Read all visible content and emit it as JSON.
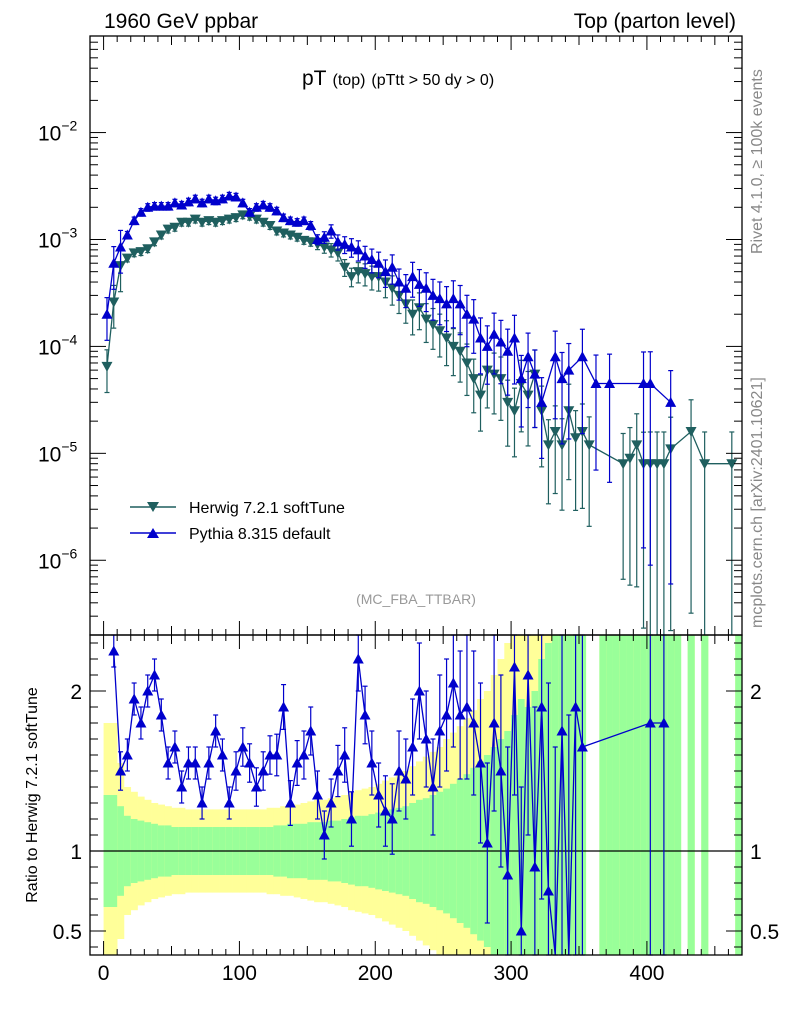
{
  "header": {
    "left": "1960 GeV ppbar",
    "right": "Top (parton level)"
  },
  "side_labels": {
    "rivet": "Rivet 4.1.0, ≥ 100k events",
    "mcplots": "mcplots.cern.ch [arXiv:2401.10621]"
  },
  "colors": {
    "herwig": "#1f5f5f",
    "pythia": "#0000cc",
    "band_inner": "#99ff99",
    "band_outer": "#ffff99"
  },
  "chart_data": [
    {
      "type": "line",
      "panel": "main",
      "title": "pT",
      "title_sub": "(top)",
      "title_cuts": "(pTtt > 50 dy > 0)",
      "analysis_label": "(MC_FBA_TTBAR)",
      "xlabel": "",
      "ylabel": "",
      "xlim": [
        -10,
        470
      ],
      "ylim": [
        2e-07,
        0.08
      ],
      "yscale": "log",
      "y_ticks": [
        {
          "base": "10",
          "exp": "−2",
          "value": 0.01
        },
        {
          "base": "10",
          "exp": "−3",
          "value": 0.001
        },
        {
          "base": "10",
          "exp": "−4",
          "value": 0.0001
        },
        {
          "base": "10",
          "exp": "−5",
          "value": 1e-05
        },
        {
          "base": "10",
          "exp": "−6",
          "value": 1e-06
        }
      ],
      "legend": [
        "Herwig 7.2.1 softTune",
        "Pythia 8.315 default"
      ],
      "legend_position": "lower-left",
      "x": [
        2.5,
        7.5,
        12.5,
        17.5,
        22.5,
        27.5,
        32.5,
        37.5,
        42.5,
        47.5,
        52.5,
        57.5,
        62.5,
        67.5,
        72.5,
        77.5,
        82.5,
        87.5,
        92.5,
        97.5,
        102.5,
        107.5,
        112.5,
        117.5,
        122.5,
        127.5,
        132.5,
        137.5,
        142.5,
        147.5,
        152.5,
        157.5,
        162.5,
        167.5,
        172.5,
        177.5,
        182.5,
        187.5,
        192.5,
        197.5,
        202.5,
        207.5,
        212.5,
        217.5,
        222.5,
        227.5,
        232.5,
        237.5,
        242.5,
        247.5,
        252.5,
        257.5,
        262.5,
        267.5,
        272.5,
        277.5,
        282.5,
        287.5,
        292.5,
        297.5,
        302.5,
        307.5,
        312.5,
        317.5,
        322.5,
        327.5,
        332.5,
        337.5,
        342.5,
        347.5,
        352.5,
        357.5,
        362.5,
        367.5,
        372.5,
        377.5,
        382.5,
        387.5,
        392.5,
        397.5,
        402.5,
        407.5,
        412.5,
        417.5,
        422.5,
        427.5,
        432.5,
        437.5,
        442.5,
        447.5,
        452.5,
        457.5,
        462.5
      ],
      "series": [
        {
          "name": "Herwig 7.2.1 softTune",
          "marker": "triangle-down",
          "values": [
            6.5e-05,
            0.00026,
            0.00057,
            0.00067,
            0.00075,
            0.00077,
            0.00082,
            0.00095,
            0.0011,
            0.00125,
            0.0013,
            0.00145,
            0.00145,
            0.00155,
            0.00145,
            0.0015,
            0.00145,
            0.0015,
            0.00155,
            0.0016,
            0.0017,
            0.00165,
            0.00155,
            0.00145,
            0.00135,
            0.0012,
            0.00115,
            0.0011,
            0.00105,
            0.00098,
            0.00095,
            0.0009,
            0.00085,
            0.0008,
            0.00075,
            0.00055,
            0.00045,
            0.0005,
            0.00048,
            0.00045,
            0.00045,
            0.0004,
            0.00035,
            0.0003,
            0.00025,
            0.0002,
            0.00023,
            0.00018,
            0.00016,
            0.00014,
            0.00012,
            0.0001,
            9e-05,
            7e-05,
            5e-05,
            3.5e-05,
            6e-05,
            5.5e-05,
            5e-05,
            3e-05,
            2.5e-05,
            4.5e-05,
            3.5e-05,
            5.5e-05,
            2.5e-05,
            1.2e-05,
            1.6e-05,
            1.2e-05,
            2.5e-05,
            1.4e-05,
            1.6e-05,
            1.2e-05,
            null,
            null,
            null,
            null,
            8e-06,
            9e-06,
            1.2e-05,
            8e-06,
            8e-06,
            8e-06,
            8e-06,
            1.1e-05,
            null,
            null,
            1.6e-05,
            null,
            8e-06,
            null,
            null,
            null,
            8e-06
          ]
        },
        {
          "name": "Pythia 8.315 default",
          "marker": "triangle-up",
          "values": [
            0.0002,
            0.0006,
            0.00085,
            0.0011,
            0.0015,
            0.0018,
            0.002,
            0.00205,
            0.00205,
            0.00205,
            0.0022,
            0.0021,
            0.00225,
            0.0024,
            0.0022,
            0.0024,
            0.0023,
            0.0024,
            0.00255,
            0.0025,
            0.0022,
            0.0018,
            0.002,
            0.0021,
            0.002,
            0.00185,
            0.0016,
            0.0015,
            0.00145,
            0.0015,
            0.00135,
            0.001,
            0.00105,
            0.0012,
            0.00095,
            0.0009,
            0.00085,
            0.0008,
            0.0007,
            0.00065,
            0.0006,
            0.0005,
            0.00055,
            0.0004,
            0.00035,
            0.00045,
            0.00038,
            0.00035,
            0.0003,
            0.00028,
            0.00025,
            0.00028,
            0.00025,
            0.0002,
            0.00018,
            0.00012,
            0.0001,
            0.00013,
            0.00011,
            9e-05,
            0.00012,
            5e-05,
            8e-05,
            5.5e-05,
            3e-05,
            null,
            8e-05,
            5e-05,
            6e-05,
            null,
            8e-05,
            null,
            4.5e-05,
            null,
            4.5e-05,
            null,
            null,
            null,
            null,
            4.5e-05,
            4.5e-05,
            null,
            null,
            3e-05,
            null,
            null,
            null,
            null,
            null,
            null,
            null,
            null,
            null
          ]
        }
      ]
    },
    {
      "type": "line",
      "panel": "ratio",
      "title": "",
      "xlabel": "",
      "ylabel": "Ratio to Herwig 7.2.1 softTune",
      "xlim": [
        -10,
        470
      ],
      "ylim": [
        0.35,
        2.35
      ],
      "yscale": "linear",
      "x_ticks": [
        0,
        100,
        200,
        300,
        400
      ],
      "y_ticks": [
        0.5,
        1,
        2
      ],
      "reference": 1.0,
      "band_edges": [
        0,
        10,
        15,
        20,
        25,
        30,
        35,
        40,
        45,
        50,
        55,
        60,
        65,
        70,
        75,
        80,
        85,
        90,
        95,
        100,
        105,
        110,
        115,
        120,
        125,
        130,
        135,
        140,
        145,
        150,
        155,
        160,
        165,
        170,
        175,
        180,
        185,
        190,
        195,
        200,
        205,
        210,
        215,
        220,
        225,
        230,
        235,
        240,
        245,
        250,
        255,
        260,
        265,
        270,
        275,
        280,
        285,
        290,
        295,
        300,
        305,
        310,
        315,
        320,
        325,
        330,
        335,
        340,
        345,
        350,
        355,
        360,
        365,
        370,
        375,
        380,
        385,
        390,
        395,
        400,
        405,
        410,
        415,
        420,
        425,
        430,
        435,
        440,
        445,
        450,
        455,
        460,
        465,
        470
      ],
      "band_inner_halfwidth": [
        0.35,
        0.28,
        0.22,
        0.2,
        0.19,
        0.18,
        0.17,
        0.16,
        0.16,
        0.15,
        0.15,
        0.15,
        0.15,
        0.15,
        0.15,
        0.15,
        0.15,
        0.15,
        0.15,
        0.15,
        0.15,
        0.15,
        0.15,
        0.15,
        0.16,
        0.16,
        0.17,
        0.17,
        0.17,
        0.18,
        0.18,
        0.18,
        0.19,
        0.19,
        0.2,
        0.21,
        0.22,
        0.22,
        0.23,
        0.24,
        0.25,
        0.26,
        0.27,
        0.28,
        0.3,
        0.32,
        0.33,
        0.35,
        0.37,
        0.39,
        0.42,
        0.45,
        0.48,
        0.52,
        0.56,
        0.6,
        0.65,
        0.7,
        0.75,
        0.85,
        0.95,
        0.9,
        1.0,
        1.2,
        1.3,
        1.4,
        1.5,
        1.5,
        1.6,
        1.6,
        1.7,
        1.0,
        1.6,
        1.6,
        1.6,
        1.6,
        1.6,
        1.6,
        1.6,
        1.6,
        1.6,
        1.6,
        1.6,
        1.6,
        1.6,
        1.6,
        1.6,
        1.6,
        1.6,
        1.6,
        1.6,
        1.6,
        1.6
      ],
      "band_outer_halfwidth": [
        0.8,
        0.55,
        0.4,
        0.37,
        0.34,
        0.32,
        0.3,
        0.29,
        0.28,
        0.27,
        0.27,
        0.26,
        0.26,
        0.26,
        0.26,
        0.26,
        0.26,
        0.26,
        0.26,
        0.26,
        0.26,
        0.26,
        0.26,
        0.27,
        0.27,
        0.28,
        0.28,
        0.29,
        0.3,
        0.31,
        0.32,
        0.32,
        0.33,
        0.34,
        0.35,
        0.37,
        0.38,
        0.39,
        0.4,
        0.42,
        0.44,
        0.46,
        0.48,
        0.5,
        0.53,
        0.56,
        0.59,
        0.62,
        0.65,
        0.7,
        0.74,
        0.78,
        0.83,
        0.88,
        0.95,
        1.0,
        1.1,
        1.2,
        1.3,
        1.4,
        1.5,
        1.6,
        1.7,
        1.8,
        1.9,
        2.0,
        2.1,
        2.2,
        2.3,
        2.4,
        2.5,
        2.6,
        2.6,
        2.6,
        2.6,
        2.6,
        2.6,
        2.6,
        2.6,
        2.6,
        2.6,
        2.6,
        2.6,
        2.6,
        2.6,
        2.6,
        2.6,
        2.6,
        2.6,
        2.6,
        2.6,
        2.6,
        2.6
      ],
      "band_present": [
        true,
        true,
        true,
        true,
        true,
        true,
        true,
        true,
        true,
        true,
        true,
        true,
        true,
        true,
        true,
        true,
        true,
        true,
        true,
        true,
        true,
        true,
        true,
        true,
        true,
        true,
        true,
        true,
        true,
        true,
        true,
        true,
        true,
        true,
        true,
        true,
        true,
        true,
        true,
        true,
        true,
        true,
        true,
        true,
        true,
        true,
        true,
        true,
        true,
        true,
        true,
        true,
        true,
        true,
        true,
        true,
        true,
        true,
        true,
        true,
        true,
        true,
        true,
        true,
        true,
        true,
        true,
        true,
        true,
        true,
        false,
        false,
        true,
        true,
        true,
        true,
        true,
        true,
        true,
        true,
        true,
        true,
        true,
        true,
        false,
        true,
        false,
        true,
        false,
        false,
        false,
        false,
        true
      ],
      "ratio_x": [
        7.5,
        12.5,
        17.5,
        22.5,
        27.5,
        32.5,
        37.5,
        42.5,
        47.5,
        52.5,
        57.5,
        62.5,
        67.5,
        72.5,
        77.5,
        82.5,
        87.5,
        92.5,
        97.5,
        102.5,
        107.5,
        112.5,
        117.5,
        122.5,
        127.5,
        132.5,
        137.5,
        142.5,
        147.5,
        152.5,
        157.5,
        162.5,
        167.5,
        172.5,
        177.5,
        182.5,
        187.5,
        192.5,
        197.5,
        202.5,
        207.5,
        212.5,
        217.5,
        222.5,
        227.5,
        232.5,
        237.5,
        242.5,
        247.5,
        252.5,
        257.5,
        262.5,
        267.5,
        272.5,
        277.5,
        282.5,
        287.5,
        292.5,
        297.5,
        302.5,
        307.5,
        312.5,
        317.5,
        322.5,
        327.5,
        332.5,
        337.5,
        342.5,
        347.5,
        352.5,
        402.5,
        412.5
      ],
      "ratio_values": [
        2.25,
        1.5,
        1.6,
        1.95,
        1.8,
        2.0,
        2.1,
        1.85,
        1.55,
        1.65,
        1.4,
        1.55,
        1.55,
        1.3,
        1.55,
        1.75,
        1.6,
        1.3,
        1.5,
        1.65,
        1.55,
        1.4,
        1.5,
        1.6,
        1.6,
        1.9,
        1.3,
        1.55,
        1.6,
        1.75,
        1.35,
        1.1,
        1.3,
        1.5,
        1.6,
        1.2,
        2.2,
        1.85,
        1.55,
        1.35,
        1.25,
        1.2,
        1.5,
        1.45,
        1.65,
        2.0,
        1.7,
        1.4,
        1.75,
        1.85,
        2.05,
        1.85,
        1.9,
        1.8,
        1.55,
        1.05,
        1.8,
        1.5,
        0.85,
        2.15,
        0.5,
        2.1,
        0.9,
        1.9,
        0.75,
        0.35,
        1.75,
        0.35,
        1.9,
        1.65,
        1.8,
        1.8
      ],
      "ratio_err": [
        0.1,
        0.12,
        0.1,
        0.1,
        0.1,
        0.1,
        0.1,
        0.1,
        0.1,
        0.1,
        0.1,
        0.1,
        0.1,
        0.1,
        0.1,
        0.1,
        0.1,
        0.1,
        0.12,
        0.12,
        0.12,
        0.12,
        0.12,
        0.12,
        0.13,
        0.14,
        0.14,
        0.14,
        0.15,
        0.15,
        0.15,
        0.15,
        0.15,
        0.16,
        0.17,
        0.17,
        0.2,
        0.18,
        0.2,
        0.2,
        0.22,
        0.22,
        0.25,
        0.25,
        0.3,
        0.3,
        0.3,
        0.3,
        0.35,
        0.35,
        0.4,
        0.4,
        0.45,
        0.45,
        0.5,
        0.5,
        0.55,
        0.6,
        0.8,
        0.8,
        0.9,
        1.0,
        1.0,
        1.2,
        1.3,
        1.3,
        1.5,
        1.5,
        1.7,
        1.8,
        1.8,
        1.8
      ]
    }
  ]
}
